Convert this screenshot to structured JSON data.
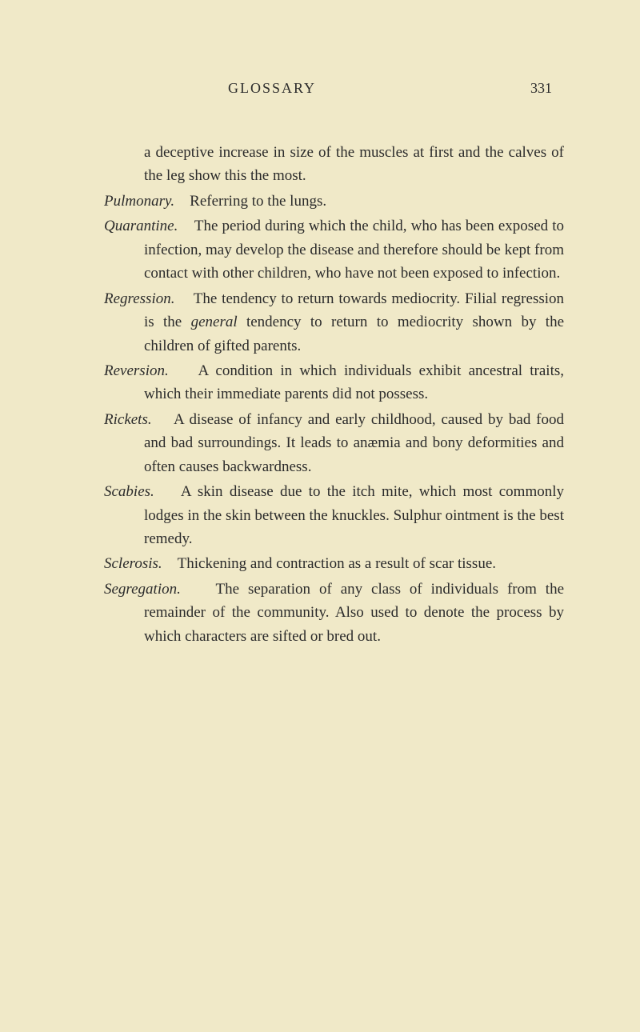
{
  "header": {
    "title": "GLOSSARY",
    "page_number": "331"
  },
  "entries": {
    "continuation": "a deceptive increase in size of the muscles at first and the calves of the leg show this the most.",
    "pulmonary": {
      "term": "Pulmonary.",
      "definition": "Referring to the lungs."
    },
    "quarantine": {
      "term": "Quarantine.",
      "definition": "The period during which the child, who has been exposed to infection, may develop the disease and therefore should be kept from contact with other children, who have not been exposed to infection."
    },
    "regression": {
      "term": "Regression.",
      "definition_part1": "The tendency to return towards mediocrity. Filial regression is the ",
      "italic_word": "general",
      "definition_part2": " tendency to return to mediocrity shown by the children of gifted parents."
    },
    "reversion": {
      "term": "Reversion.",
      "definition": "A condition in which individuals exhibit ancestral traits, which their immediate parents did not possess."
    },
    "rickets": {
      "term": "Rickets.",
      "definition": "A disease of infancy and early childhood, caused by bad food and bad surroundings. It leads to anæmia and bony deformities and often causes backwardness."
    },
    "scabies": {
      "term": "Scabies.",
      "definition": "A skin disease due to the itch mite, which most commonly lodges in the skin between the knuckles. Sulphur ointment is the best remedy."
    },
    "sclerosis": {
      "term": "Sclerosis.",
      "definition": "Thickening and contraction as a result of scar tissue."
    },
    "segregation": {
      "term": "Segregation.",
      "definition": "The separation of any class of individuals from the remainder of the community. Also used to denote the process by which characters are sifted or bred out."
    }
  }
}
